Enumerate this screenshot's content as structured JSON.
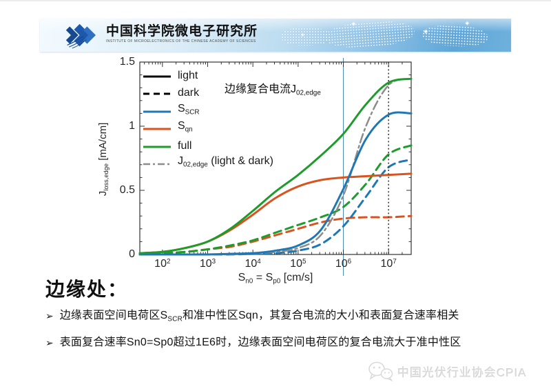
{
  "header": {
    "org_name_cn": "中国科学院微电子研究所",
    "org_name_en": "INSTITUTE OF MICROELECTRONICS OF THE CHINESE ACADEMY OF SCIENCES",
    "logo_icon": "triple-arrow-logo",
    "banner_colors": {
      "left": "#f3fafe",
      "right": "#5ea6d8"
    }
  },
  "chart_data": {
    "type": "line",
    "x_scale": "log10",
    "xlim_log10": [
      1.5,
      7.5
    ],
    "ylim": [
      0,
      1.5
    ],
    "grid": false,
    "legend_position": "top-left",
    "x_label_parts": [
      {
        "t": "S"
      },
      {
        "s": "n0"
      },
      {
        "t": " = S"
      },
      {
        "s": "p0"
      },
      {
        "t": " [cm/s]"
      }
    ],
    "y_label_parts": [
      {
        "t": "J"
      },
      {
        "s": "loss,edge"
      },
      {
        "t": " [mA/cm]"
      }
    ],
    "x_tick_exponents": [
      2,
      3,
      4,
      5,
      6,
      7
    ],
    "y_ticks": [
      {
        "v": 0,
        "label": "0"
      },
      {
        "v": 0.5,
        "label": "0.5"
      },
      {
        "v": 1,
        "label": "1"
      },
      {
        "v": 1.5,
        "label": "1.5"
      }
    ],
    "x_log10": [
      1.5,
      2,
      2.5,
      3,
      3.5,
      4,
      4.5,
      5,
      5.5,
      6,
      6.5,
      7,
      7.5
    ],
    "series": [
      {
        "id": "sqn-dark",
        "label": "Sqn (dark)",
        "color": "#d9531e",
        "style": "dashed",
        "width": 3,
        "values": [
          0.0,
          0.01,
          0.02,
          0.04,
          0.06,
          0.1,
          0.15,
          0.2,
          0.25,
          0.28,
          0.29,
          0.29,
          0.3
        ]
      },
      {
        "id": "sscr-dark",
        "label": "SSCR (dark)",
        "color": "#1f77b4",
        "style": "dashed",
        "width": 3,
        "values": [
          0.0,
          0.0,
          0.0,
          0.0,
          0.0,
          0.005,
          0.01,
          0.03,
          0.08,
          0.22,
          0.45,
          0.68,
          0.74
        ]
      },
      {
        "id": "full-dark",
        "label": "full (dark)",
        "color": "#1e9b2c",
        "style": "dashed",
        "width": 3,
        "values": [
          0.0,
          0.01,
          0.02,
          0.04,
          0.07,
          0.11,
          0.17,
          0.23,
          0.29,
          0.37,
          0.55,
          0.78,
          0.85
        ]
      },
      {
        "id": "j02-edge",
        "label": "J02,edge (light & dark)",
        "color": "#8c8c8c",
        "style": "dashdot",
        "width": 2.5,
        "values": [
          0.0,
          0.0,
          0.0,
          0.0,
          0.0,
          0.01,
          0.02,
          0.05,
          0.15,
          0.46,
          1.0,
          1.32,
          1.37
        ]
      },
      {
        "id": "sqn-light",
        "label": "Sqn (light)",
        "color": "#d9531e",
        "style": "solid",
        "width": 3,
        "values": [
          0.01,
          0.02,
          0.05,
          0.1,
          0.19,
          0.31,
          0.44,
          0.53,
          0.58,
          0.6,
          0.61,
          0.62,
          0.63
        ]
      },
      {
        "id": "sscr-light",
        "label": "SSCR (light)",
        "color": "#1f77b4",
        "style": "solid",
        "width": 3,
        "values": [
          0.0,
          0.0,
          0.0,
          0.0,
          0.005,
          0.01,
          0.03,
          0.07,
          0.19,
          0.51,
          0.9,
          1.09,
          1.1
        ]
      },
      {
        "id": "full-light",
        "label": "full (light)",
        "color": "#1e9b2c",
        "style": "solid",
        "width": 3,
        "values": [
          0.01,
          0.02,
          0.05,
          0.1,
          0.2,
          0.34,
          0.49,
          0.62,
          0.77,
          0.94,
          1.17,
          1.34,
          1.37
        ]
      }
    ],
    "vlines": [
      {
        "x_log10": 6,
        "style": "solid",
        "color": "#4a8db5",
        "width": 1,
        "span": "beyond"
      },
      {
        "x_log10": 7,
        "style": "dotted",
        "color": "#3a3a3a",
        "width": 1.6,
        "span": "plot"
      }
    ],
    "legend": [
      {
        "key": "light",
        "parts": [
          {
            "t": "light"
          }
        ],
        "line": {
          "color": "#000000",
          "style": "solid",
          "width": 3
        }
      },
      {
        "key": "dark",
        "parts": [
          {
            "t": "dark"
          }
        ],
        "line": {
          "color": "#000000",
          "style": "dashed",
          "width": 3
        }
      },
      {
        "key": "sscr",
        "parts": [
          {
            "t": "S"
          },
          {
            "s": "SCR"
          }
        ],
        "line": {
          "color": "#1f77b4",
          "style": "solid",
          "width": 3
        }
      },
      {
        "key": "sqn",
        "parts": [
          {
            "t": "S"
          },
          {
            "s": "qn"
          }
        ],
        "line": {
          "color": "#d9531e",
          "style": "solid",
          "width": 3
        }
      },
      {
        "key": "full",
        "parts": [
          {
            "t": "full"
          }
        ],
        "line": {
          "color": "#1e9b2c",
          "style": "solid",
          "width": 3
        }
      },
      {
        "key": "j02",
        "parts": [
          {
            "t": "J"
          },
          {
            "s": "02,edge"
          },
          {
            "t": " (light & dark)"
          }
        ],
        "line": {
          "color": "#8c8c8c",
          "style": "dashdot",
          "width": 2.5
        }
      }
    ],
    "annotation_parts": [
      {
        "t": "边缘复合电流J"
      },
      {
        "s": "02,edge"
      }
    ]
  },
  "body": {
    "heading": "边缘处：",
    "bullets": [
      {
        "marker": "➢",
        "parts": [
          {
            "t": "边缘表面空间电荷区S"
          },
          {
            "s": "SCR"
          },
          {
            "t": "和准中性区Sqn，其复合电流的大小和表面复合速率相关"
          }
        ]
      },
      {
        "marker": "➢",
        "parts": [
          {
            "t": "表面复合速率Sn0=Sp0超过1E6时，边缘表面空间电荷区的复合电流大于准中性区"
          }
        ]
      }
    ]
  },
  "footer": {
    "icon": "wechat-icon",
    "watermark": "中国光伏行业协会CPIA"
  }
}
